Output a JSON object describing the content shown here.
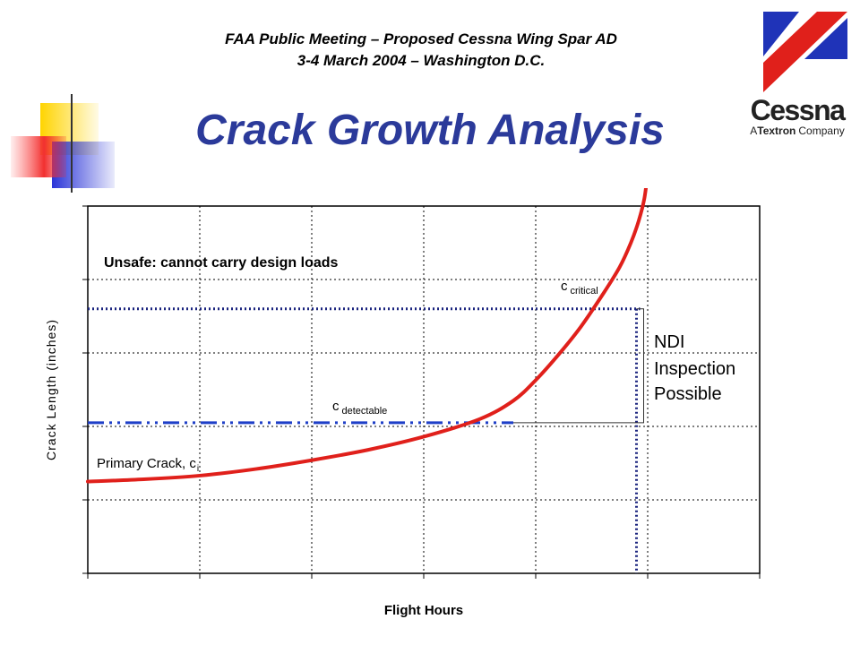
{
  "header": {
    "line1": "FAA Public Meeting – Proposed Cessna Wing Spar AD",
    "line2": "3-4 March 2004 – Washington D.C."
  },
  "title": "Crack Growth Analysis",
  "logo": {
    "brand": "Cessna",
    "tagline_a": "A",
    "tagline_b": "Textron",
    "tagline_c": "Company",
    "colors": {
      "blue": "#1F33B8",
      "red": "#E0201B"
    }
  },
  "chart_data": {
    "type": "line",
    "title": "",
    "xlabel": "Flight Hours",
    "ylabel": "Crack Length (inches)",
    "xlim": [
      0,
      6
    ],
    "ylim": [
      0,
      5
    ],
    "grid": true,
    "series": [
      {
        "name": "",
        "color": "#E0201B",
        "x": [
          0,
          0.5,
          1,
          1.5,
          2,
          2.5,
          3,
          3.5,
          3.8,
          4.0,
          4.2,
          4.4,
          4.6,
          4.75,
          4.85,
          4.92,
          4.97,
          5.0
        ],
        "y": [
          1.25,
          1.28,
          1.33,
          1.42,
          1.54,
          1.68,
          1.86,
          2.1,
          2.35,
          2.63,
          2.97,
          3.35,
          3.8,
          4.17,
          4.5,
          4.8,
          5.1,
          5.45
        ]
      }
    ],
    "thresholds": {
      "c_critical": 3.6,
      "c_detectable": 2.05,
      "critical_hours": 4.9,
      "detectable_hours": 3.8
    },
    "annotations": {
      "unsafe": "Unsafe:  cannot carry design loads",
      "c_critical_main": "c",
      "c_critical_sub": "critical",
      "c_detectable_main": "c",
      "c_detectable_sub": "detectable",
      "primary_main": "Primary Crack, c",
      "primary_sub": "i",
      "ndi_lines": [
        "NDI",
        "Inspection",
        "Possible"
      ]
    },
    "colors": {
      "curve": "#E0201B",
      "critical": "#1A237E",
      "detectable": "#1E3FC8"
    }
  }
}
